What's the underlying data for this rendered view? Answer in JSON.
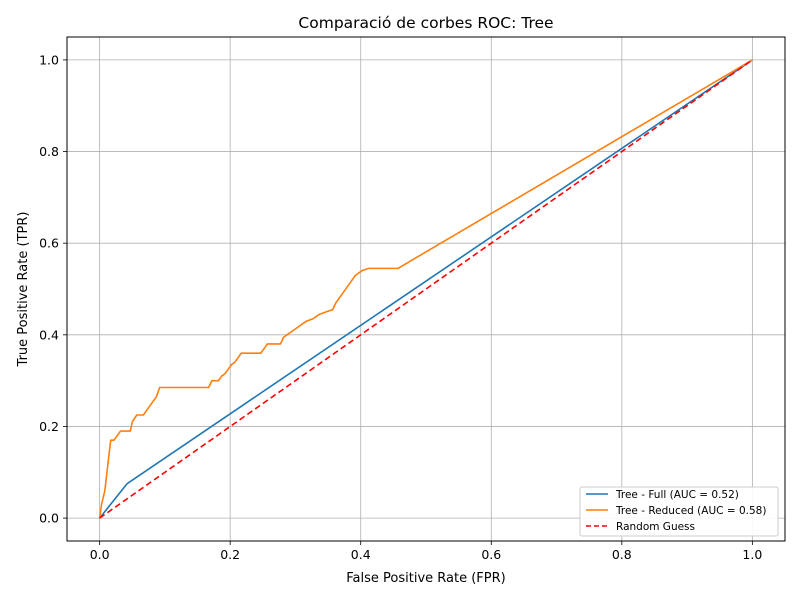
{
  "chart_data": {
    "type": "line",
    "title": "Comparació de corbes ROC: Tree",
    "xlabel": "False Positive Rate (FPR)",
    "ylabel": "True Positive Rate (TPR)",
    "xlim": [
      -0.05,
      1.05
    ],
    "ylim": [
      -0.05,
      1.05
    ],
    "xticks": [
      0.0,
      0.2,
      0.4,
      0.6,
      0.8,
      1.0
    ],
    "yticks": [
      0.0,
      0.2,
      0.4,
      0.6,
      0.8,
      1.0
    ],
    "tick_labels": [
      "0.0",
      "0.2",
      "0.4",
      "0.6",
      "0.8",
      "1.0"
    ],
    "grid": true,
    "legend_position": "lower-right",
    "series": [
      {
        "name": "Tree - Full (AUC = 0.52)",
        "color": "#1f77b4",
        "dashed": false,
        "x": [
          0.0,
          0.042,
          1.0
        ],
        "y": [
          0.0,
          0.075,
          1.0
        ]
      },
      {
        "name": "Tree - Reduced (AUC = 0.58)",
        "color": "#ff7f0e",
        "dashed": false,
        "x": [
          0.0,
          0.003,
          0.008,
          0.012,
          0.017,
          0.022,
          0.027,
          0.032,
          0.037,
          0.042,
          0.047,
          0.05,
          0.057,
          0.062,
          0.067,
          0.077,
          0.087,
          0.092,
          0.097,
          0.107,
          0.117,
          0.127,
          0.137,
          0.147,
          0.157,
          0.167,
          0.172,
          0.177,
          0.182,
          0.187,
          0.192,
          0.197,
          0.202,
          0.207,
          0.212,
          0.217,
          0.222,
          0.232,
          0.242,
          0.247,
          0.252,
          0.257,
          0.262,
          0.272,
          0.277,
          0.282,
          0.287,
          0.297,
          0.307,
          0.317,
          0.327,
          0.337,
          0.347,
          0.357,
          0.362,
          0.372,
          0.382,
          0.392,
          0.402,
          0.412,
          0.422,
          0.432,
          0.442,
          0.452,
          0.457,
          1.0
        ],
        "y": [
          0.0,
          0.03,
          0.06,
          0.11,
          0.17,
          0.17,
          0.18,
          0.19,
          0.19,
          0.19,
          0.19,
          0.21,
          0.225,
          0.225,
          0.225,
          0.245,
          0.265,
          0.285,
          0.285,
          0.285,
          0.285,
          0.285,
          0.285,
          0.285,
          0.285,
          0.285,
          0.3,
          0.3,
          0.3,
          0.31,
          0.315,
          0.325,
          0.335,
          0.34,
          0.35,
          0.36,
          0.36,
          0.36,
          0.36,
          0.36,
          0.37,
          0.38,
          0.38,
          0.38,
          0.38,
          0.395,
          0.4,
          0.41,
          0.42,
          0.43,
          0.435,
          0.445,
          0.45,
          0.455,
          0.47,
          0.49,
          0.51,
          0.53,
          0.54,
          0.545,
          0.545,
          0.545,
          0.545,
          0.545,
          0.545,
          1.0
        ]
      },
      {
        "name": "Random Guess",
        "color": "#ff0000",
        "dashed": true,
        "x": [
          0.0,
          1.0
        ],
        "y": [
          0.0,
          1.0
        ]
      }
    ]
  }
}
